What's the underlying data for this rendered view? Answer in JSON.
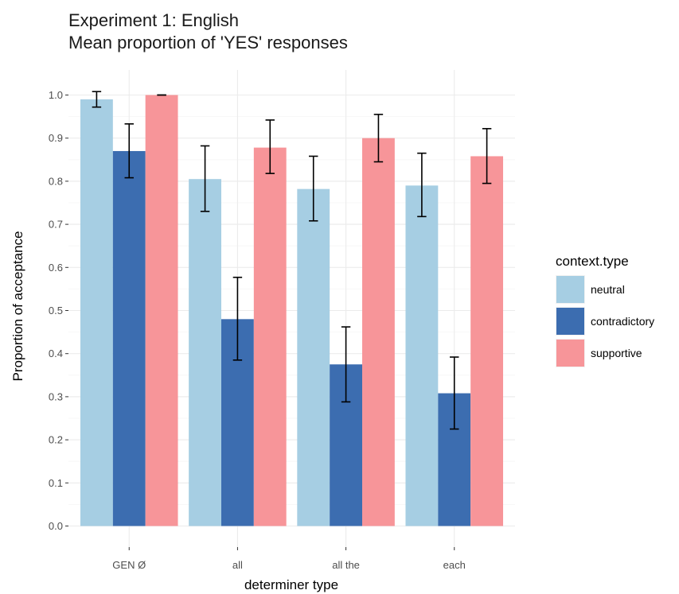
{
  "chart_data": {
    "type": "bar",
    "title": "Experiment 1: English",
    "subtitle": "Mean proportion of 'YES' responses",
    "xlabel": "determiner type",
    "ylabel": "Proportion of acceptance",
    "categories": [
      "GEN Ø",
      "all",
      "all the",
      "each"
    ],
    "ylim": [
      0,
      1.05
    ],
    "yticks": [
      "0.0",
      "0.1",
      "0.2",
      "0.3",
      "0.4",
      "0.5",
      "0.6",
      "0.7",
      "0.8",
      "0.9",
      "1.0"
    ],
    "grid": true,
    "legend": {
      "title": "context.type",
      "placement": "right"
    },
    "series": [
      {
        "name": "neutral",
        "color": "#a6cee3",
        "values": [
          0.99,
          0.805,
          0.782,
          0.79
        ],
        "error": [
          [
            0.972,
            1.008
          ],
          [
            0.73,
            0.882
          ],
          [
            0.708,
            0.858
          ],
          [
            0.718,
            0.865
          ]
        ]
      },
      {
        "name": "contradictory",
        "color": "#3c6db0",
        "values": [
          0.87,
          0.48,
          0.375,
          0.308
        ],
        "error": [
          [
            0.808,
            0.933
          ],
          [
            0.385,
            0.577
          ],
          [
            0.288,
            0.462
          ],
          [
            0.225,
            0.392
          ]
        ]
      },
      {
        "name": "supportive",
        "color": "#f79599",
        "values": [
          1.0,
          0.878,
          0.9,
          0.858
        ],
        "error": [
          [
            1.0,
            1.0
          ],
          [
            0.818,
            0.942
          ],
          [
            0.845,
            0.955
          ],
          [
            0.795,
            0.922
          ]
        ]
      }
    ]
  }
}
